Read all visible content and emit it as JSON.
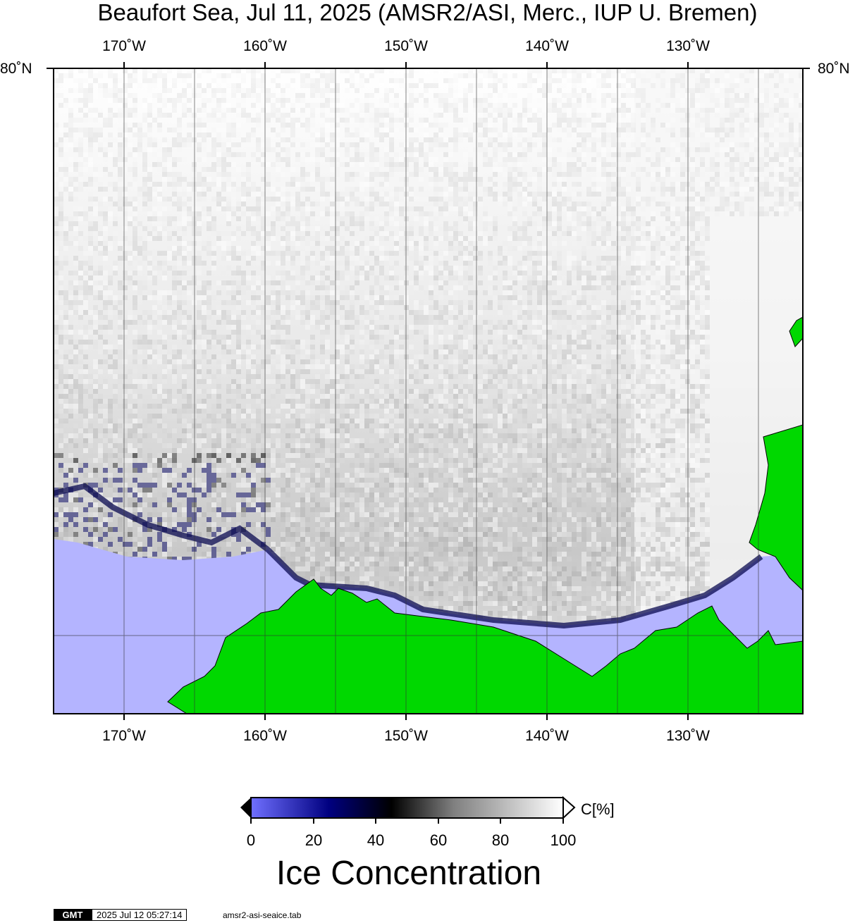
{
  "title": "Beaufort Sea, Jul 11, 2025 (AMSR2/ASI, Merc., IUP U. Bremen)",
  "map": {
    "lon_labels": [
      "170˚W",
      "160˚W",
      "150˚W",
      "140˚W",
      "130˚W"
    ],
    "lat_label": "80˚N",
    "colors": {
      "ocean": "#b4b4ff",
      "land": "#00d800",
      "frame": "#000000"
    }
  },
  "colorbar": {
    "unit": "C[%]",
    "ticks": [
      "0",
      "20",
      "40",
      "60",
      "80",
      "100"
    ],
    "title": "Ice Concentration",
    "stops": [
      "#7070ff",
      "#000080",
      "#000000",
      "#808080",
      "#ffffff"
    ]
  },
  "footer": {
    "logo": "GMT",
    "timestamp": "2025 Jul 12 05:27:14",
    "file": "amsr2-asi-seaice.tab"
  }
}
